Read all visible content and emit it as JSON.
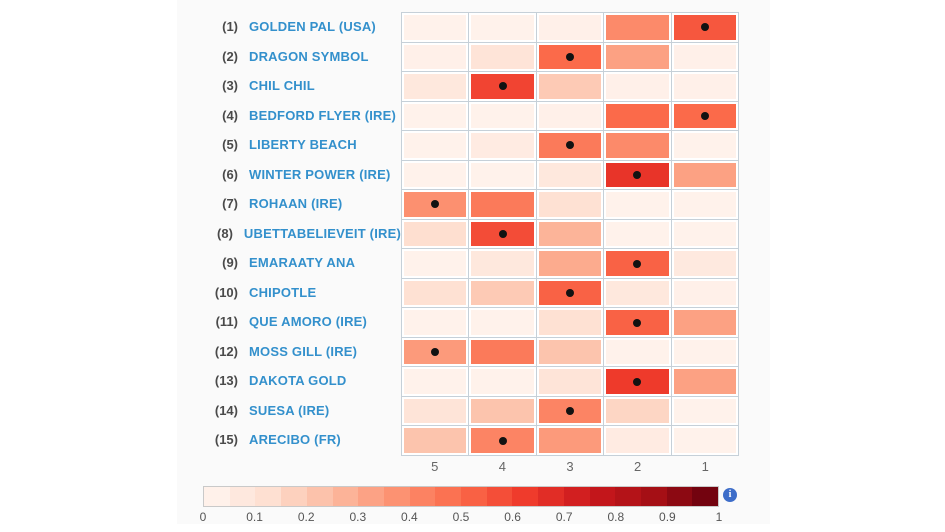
{
  "page": {
    "background": "#ffffff",
    "panel_background": "#fafafa"
  },
  "chart_data": {
    "type": "heatmap",
    "description": "Predicted finishing-position probability heatmap for 15 horses; columns are finishing positions 5-1; black dot marks one position per horse; Reds colormap 0-1",
    "columns": [
      "5",
      "4",
      "3",
      "2",
      "1"
    ],
    "rows": [
      {
        "rank": "(1)",
        "name": "GOLDEN PAL (USA)",
        "values": [
          0.02,
          0.02,
          0.03,
          0.4,
          0.55
        ],
        "dot_col": 4
      },
      {
        "rank": "(2)",
        "name": "DRAGON SYMBOL",
        "values": [
          0.03,
          0.1,
          0.5,
          0.33,
          0.03
        ],
        "dot_col": 2
      },
      {
        "rank": "(3)",
        "name": "CHIL CHIL",
        "values": [
          0.08,
          0.6,
          0.2,
          0.03,
          0.03
        ],
        "dot_col": 1
      },
      {
        "rank": "(4)",
        "name": "BEDFORD FLYER (IRE)",
        "values": [
          0.02,
          0.02,
          0.03,
          0.5,
          0.5
        ],
        "dot_col": 4
      },
      {
        "rank": "(5)",
        "name": "LIBERTY BEACH",
        "values": [
          0.02,
          0.06,
          0.45,
          0.4,
          0.02
        ],
        "dot_col": 2
      },
      {
        "rank": "(6)",
        "name": "WINTER POWER (IRE)",
        "values": [
          0.02,
          0.02,
          0.08,
          0.65,
          0.33
        ],
        "dot_col": 3
      },
      {
        "rank": "(7)",
        "name": "ROHAAN (IRE)",
        "values": [
          0.38,
          0.45,
          0.12,
          0.02,
          0.02
        ],
        "dot_col": 0
      },
      {
        "rank": "(8)",
        "name": "UBETTABELIEVEIT (IRE)",
        "values": [
          0.13,
          0.58,
          0.27,
          0.02,
          0.02
        ],
        "dot_col": 1
      },
      {
        "rank": "(9)",
        "name": "EMARAATY ANA",
        "values": [
          0.02,
          0.08,
          0.3,
          0.52,
          0.07
        ],
        "dot_col": 3
      },
      {
        "rank": "(10)",
        "name": "CHIPOTLE",
        "values": [
          0.12,
          0.2,
          0.52,
          0.08,
          0.03
        ],
        "dot_col": 2
      },
      {
        "rank": "(11)",
        "name": "QUE AMORO (IRE)",
        "values": [
          0.02,
          0.02,
          0.12,
          0.52,
          0.33
        ],
        "dot_col": 3
      },
      {
        "rank": "(12)",
        "name": "MOSS GILL (IRE)",
        "values": [
          0.35,
          0.45,
          0.22,
          0.02,
          0.02
        ],
        "dot_col": 0
      },
      {
        "rank": "(13)",
        "name": "DAKOTA GOLD",
        "values": [
          0.02,
          0.02,
          0.1,
          0.63,
          0.33
        ],
        "dot_col": 3
      },
      {
        "rank": "(14)",
        "name": "SUESA (IRE)",
        "values": [
          0.1,
          0.22,
          0.42,
          0.16,
          0.02
        ],
        "dot_col": 2
      },
      {
        "rank": "(15)",
        "name": "ARECIBO (FR)",
        "values": [
          0.22,
          0.42,
          0.35,
          0.06,
          0.02
        ],
        "dot_col": 1
      }
    ],
    "colormap": "Reds",
    "colorbar": {
      "min": 0,
      "max": 1,
      "segments": 20,
      "tick_labels": [
        "0",
        "0.1",
        "0.2",
        "0.3",
        "0.4",
        "0.5",
        "0.6",
        "0.7",
        "0.8",
        "0.9",
        "1"
      ]
    },
    "colors": {
      "name_text": "#3390cc",
      "rank_text": "#4a4a4a",
      "axis_text": "#666666",
      "grid_line": "#c6d0d8",
      "dot": "#121212",
      "info_icon_bg": "#3d6dc9"
    }
  },
  "legend": {
    "info_icon_glyph": "i"
  }
}
